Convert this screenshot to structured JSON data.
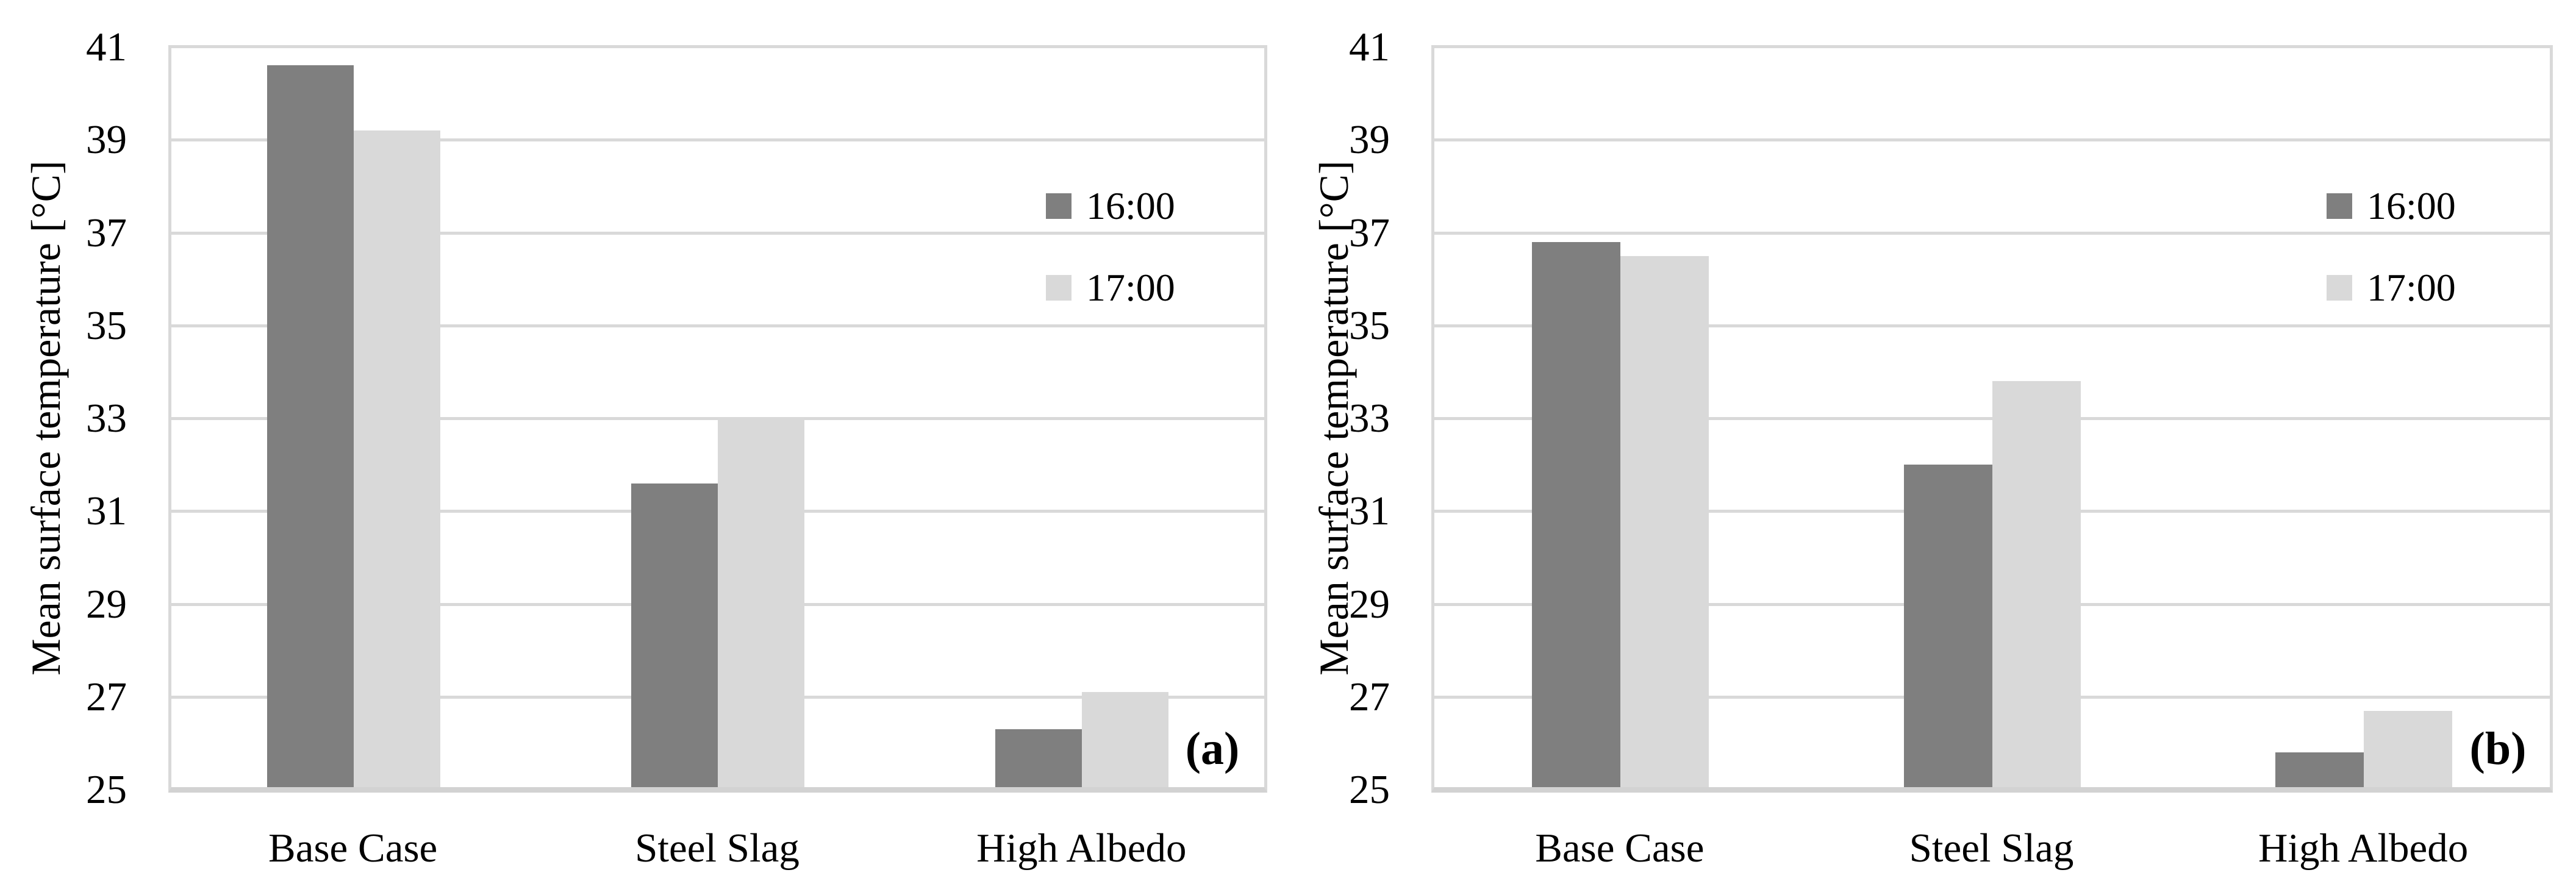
{
  "colors": {
    "series_16": "#7f7f7f",
    "series_17": "#d9d9d9",
    "gridline": "#d9d9d9",
    "axis_line": "#d2d2d2",
    "text": "#000000",
    "background": "#ffffff"
  },
  "chart_data": [
    {
      "type": "bar",
      "panel_label": "(a)",
      "title": "",
      "xlabel": "",
      "ylabel": "Mean surface temperature [°C]",
      "categories": [
        "Base Case",
        "Steel Slag",
        "High Albedo"
      ],
      "series": [
        {
          "name": "16:00",
          "color": "#7f7f7f",
          "values": [
            40.6,
            31.6,
            26.3
          ]
        },
        {
          "name": "17:00",
          "color": "#d9d9d9",
          "values": [
            39.2,
            33.0,
            27.1
          ]
        }
      ],
      "ylim": [
        25,
        41
      ],
      "yticks": [
        25,
        27,
        29,
        31,
        33,
        35,
        37,
        39,
        41
      ],
      "grid": "horizontal",
      "legend_position": "inside-upper-right"
    },
    {
      "type": "bar",
      "panel_label": "(b)",
      "title": "",
      "xlabel": "",
      "ylabel": "Mean surface temperature [°C]",
      "categories": [
        "Base Case",
        "Steel Slag",
        "High Albedo"
      ],
      "series": [
        {
          "name": "16:00",
          "color": "#7f7f7f",
          "values": [
            36.8,
            32.0,
            25.8
          ]
        },
        {
          "name": "17:00",
          "color": "#d9d9d9",
          "values": [
            36.5,
            33.8,
            26.7
          ]
        }
      ],
      "ylim": [
        25,
        41
      ],
      "yticks": [
        25,
        27,
        29,
        31,
        33,
        35,
        37,
        39,
        41
      ],
      "grid": "horizontal",
      "legend_position": "inside-upper-right"
    }
  ]
}
